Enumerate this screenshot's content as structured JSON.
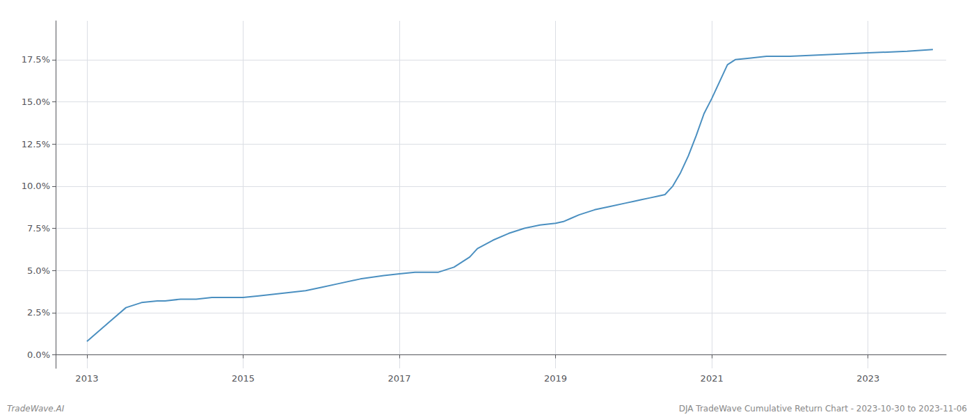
{
  "chart_data": {
    "type": "line",
    "title": "DJA TradeWave Cumulative Return Chart - 2023-10-30 to 2023-11-06",
    "annotations": [
      "TradeWave.AI"
    ],
    "color": "#4a8fc0",
    "grid": true,
    "x": [
      2013.0,
      2013.1,
      2013.3,
      2013.5,
      2013.7,
      2013.9,
      2014.0,
      2014.2,
      2014.4,
      2014.6,
      2014.8,
      2015.0,
      2015.2,
      2015.4,
      2015.6,
      2015.8,
      2016.0,
      2016.2,
      2016.5,
      2016.8,
      2017.0,
      2017.2,
      2017.3,
      2017.4,
      2017.5,
      2017.7,
      2017.9,
      2018.0,
      2018.2,
      2018.4,
      2018.6,
      2018.8,
      2019.0,
      2019.1,
      2019.2,
      2019.3,
      2019.5,
      2019.7,
      2019.9,
      2020.0,
      2020.1,
      2020.2,
      2020.3,
      2020.4,
      2020.5,
      2020.6,
      2020.7,
      2020.8,
      2020.9,
      2021.0,
      2021.1,
      2021.2,
      2021.3,
      2021.5,
      2021.7,
      2022.0,
      2022.5,
      2023.0,
      2023.5,
      2023.83
    ],
    "values": [
      0.008,
      0.012,
      0.02,
      0.028,
      0.031,
      0.032,
      0.032,
      0.033,
      0.033,
      0.034,
      0.034,
      0.034,
      0.035,
      0.036,
      0.037,
      0.038,
      0.04,
      0.042,
      0.045,
      0.047,
      0.048,
      0.049,
      0.049,
      0.049,
      0.049,
      0.052,
      0.058,
      0.063,
      0.068,
      0.072,
      0.075,
      0.077,
      0.078,
      0.079,
      0.081,
      0.083,
      0.086,
      0.088,
      0.09,
      0.091,
      0.092,
      0.093,
      0.094,
      0.095,
      0.1,
      0.108,
      0.118,
      0.13,
      0.143,
      0.152,
      0.162,
      0.172,
      0.175,
      0.176,
      0.177,
      0.177,
      0.178,
      0.179,
      0.18,
      0.181
    ],
    "xlim": [
      2012.6,
      2024.0
    ],
    "xticks": [
      2013,
      2015,
      2017,
      2019,
      2021,
      2023
    ],
    "ylim": [
      -0.008,
      0.198
    ],
    "yticks": [
      {
        "value": 0.0,
        "label": "0.0%"
      },
      {
        "value": 0.025,
        "label": "2.5%"
      },
      {
        "value": 0.05,
        "label": "5.0%"
      },
      {
        "value": 0.075,
        "label": "7.5%"
      },
      {
        "value": 0.1,
        "label": "10.0%"
      },
      {
        "value": 0.125,
        "label": "12.5%"
      },
      {
        "value": 0.15,
        "label": "15.0%"
      },
      {
        "value": 0.175,
        "label": "17.5%"
      }
    ]
  }
}
